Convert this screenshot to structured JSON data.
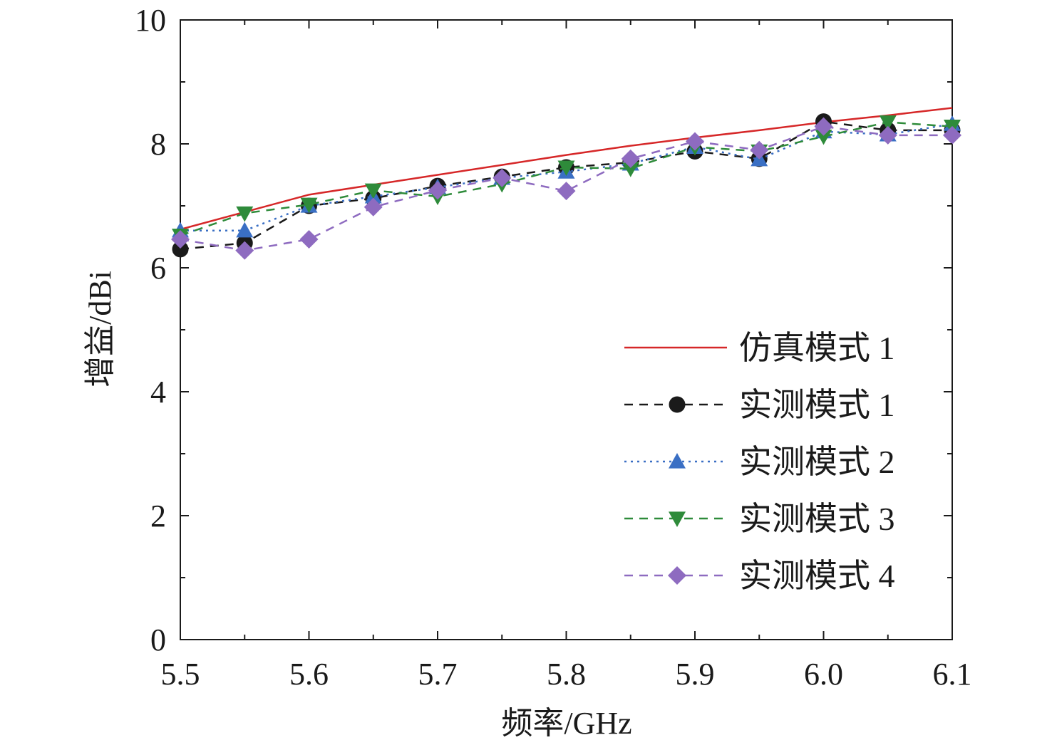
{
  "chart_data": {
    "type": "line",
    "xlabel": "频率/GHz",
    "ylabel": "增益/dBi",
    "xlim": [
      5.5,
      6.1
    ],
    "ylim": [
      0,
      10
    ],
    "x_ticks": [
      "5.5",
      "5.6",
      "5.7",
      "5.8",
      "5.9",
      "6.0",
      "6.1"
    ],
    "y_ticks": [
      "0",
      "2",
      "4",
      "6",
      "8",
      "10"
    ],
    "grid": false,
    "legend_position": "right",
    "x": [
      5.5,
      5.55,
      5.6,
      5.65,
      5.7,
      5.75,
      5.8,
      5.85,
      5.9,
      5.95,
      6.0,
      6.05,
      6.1
    ],
    "series": [
      {
        "name": "仿真模式 1",
        "color": "#d62728",
        "line_style": "solid",
        "marker": "none",
        "values": [
          6.62,
          6.9,
          7.18,
          7.34,
          7.5,
          7.66,
          7.82,
          7.97,
          8.1,
          8.22,
          8.35,
          8.46,
          8.58
        ]
      },
      {
        "name": "实测模式 1",
        "color": "#1a1a1a",
        "line_style": "dashed",
        "marker": "circle",
        "values": [
          6.3,
          6.4,
          7.0,
          7.12,
          7.32,
          7.47,
          7.62,
          7.7,
          7.88,
          7.76,
          8.36,
          8.22,
          8.22
        ]
      },
      {
        "name": "实测模式 2",
        "color": "#3a6fc4",
        "line_style": "dotted",
        "marker": "triangle-up",
        "values": [
          6.6,
          6.6,
          7.0,
          7.15,
          7.3,
          7.45,
          7.55,
          7.68,
          7.95,
          7.75,
          8.2,
          8.15,
          8.32
        ]
      },
      {
        "name": "实测模式 3",
        "color": "#2e8b3a",
        "line_style": "dashed",
        "marker": "triangle-down",
        "values": [
          6.52,
          6.88,
          7.02,
          7.25,
          7.15,
          7.35,
          7.62,
          7.6,
          7.95,
          7.88,
          8.12,
          8.35,
          8.28
        ]
      },
      {
        "name": "实测模式 4",
        "color": "#8e6bc0",
        "line_style": "dashed",
        "marker": "diamond",
        "values": [
          6.46,
          6.28,
          6.46,
          6.98,
          7.25,
          7.45,
          7.24,
          7.76,
          8.04,
          7.9,
          8.28,
          8.14,
          8.14
        ]
      }
    ]
  }
}
